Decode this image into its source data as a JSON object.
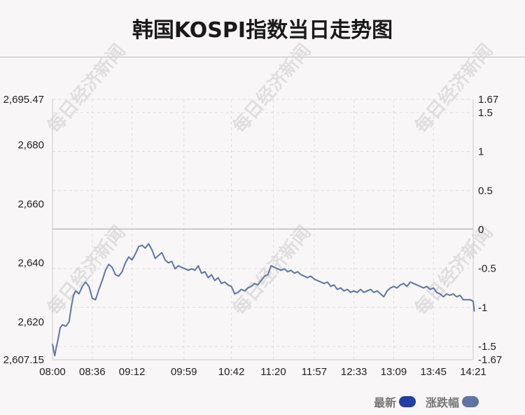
{
  "title": "韩国KOSPI指数当日走势图",
  "legend": [
    {
      "label": "最新",
      "color": "#1f3fa6"
    },
    {
      "label": "涨跌幅",
      "color": "#5f75a5"
    }
  ],
  "colors": {
    "line": "#5f75a5",
    "grid": "#e0dcdc",
    "zero_line": "#bdbdbd",
    "axis": "#cccccc"
  },
  "watermark": "每日经济新闻",
  "chart_data": {
    "type": "line",
    "title": "韩国KOSPI指数当日走势图",
    "x_ticks": [
      "08:00",
      "08:36",
      "09:12",
      "09:59",
      "10:42",
      "11:20",
      "11:57",
      "12:33",
      "13:09",
      "13:45",
      "14:21"
    ],
    "y_left": {
      "min": 2607.15,
      "max": 2695.47,
      "ticks": [
        "2,607.15",
        "2,620",
        "2,640",
        "2,660",
        "2,680",
        "2,695.47"
      ]
    },
    "y_right": {
      "min": -1.67,
      "max": 1.67,
      "ticks": [
        "-1.67",
        "-1.5",
        "-1",
        "-0.5",
        "0",
        "0.5",
        "1",
        "1.5",
        "1.67"
      ]
    },
    "reference": 2651.5,
    "series": [
      {
        "points": [
          [
            "08:00",
            2612.5
          ],
          [
            "08:02",
            2608.5
          ],
          [
            "08:03",
            2610.5
          ],
          [
            "08:05",
            2614.0
          ],
          [
            "08:07",
            2618.0
          ],
          [
            "08:09",
            2619.0
          ],
          [
            "08:12",
            2618.5
          ],
          [
            "08:15",
            2620.0
          ],
          [
            "08:17",
            2625.0
          ],
          [
            "08:19",
            2629.0
          ],
          [
            "08:21",
            2630.5
          ],
          [
            "08:24",
            2629.5
          ],
          [
            "08:27",
            2632.0
          ],
          [
            "08:30",
            2633.5
          ],
          [
            "08:33",
            2632.0
          ],
          [
            "08:36",
            2628.0
          ],
          [
            "08:39",
            2627.5
          ],
          [
            "08:42",
            2631.0
          ],
          [
            "08:45",
            2634.0
          ],
          [
            "08:48",
            2637.5
          ],
          [
            "08:51",
            2639.5
          ],
          [
            "08:54",
            2638.5
          ],
          [
            "08:57",
            2636.0
          ],
          [
            "09:00",
            2635.5
          ],
          [
            "09:03",
            2637.0
          ],
          [
            "09:06",
            2640.0
          ],
          [
            "09:09",
            2642.0
          ],
          [
            "09:12",
            2641.0
          ],
          [
            "09:15",
            2643.0
          ],
          [
            "09:18",
            2645.5
          ],
          [
            "09:21",
            2646.0
          ],
          [
            "09:24",
            2645.0
          ],
          [
            "09:27",
            2646.5
          ],
          [
            "09:30",
            2644.5
          ],
          [
            "09:33",
            2641.5
          ],
          [
            "09:36",
            2642.5
          ],
          [
            "09:39",
            2643.5
          ],
          [
            "09:42",
            2641.0
          ],
          [
            "09:45",
            2640.0
          ],
          [
            "09:48",
            2640.5
          ],
          [
            "09:51",
            2638.0
          ],
          [
            "09:54",
            2639.0
          ],
          [
            "09:57",
            2638.5
          ],
          [
            "10:00",
            2638.0
          ],
          [
            "10:03",
            2637.5
          ],
          [
            "10:06",
            2638.0
          ],
          [
            "10:09",
            2637.5
          ],
          [
            "10:12",
            2639.0
          ],
          [
            "10:15",
            2636.5
          ],
          [
            "10:18",
            2637.0
          ],
          [
            "10:21",
            2635.0
          ],
          [
            "10:24",
            2636.0
          ],
          [
            "10:27",
            2634.0
          ],
          [
            "10:30",
            2635.0
          ],
          [
            "10:33",
            2633.0
          ],
          [
            "10:36",
            2633.5
          ],
          [
            "10:39",
            2632.5
          ],
          [
            "10:42",
            2632.0
          ],
          [
            "10:45",
            2629.5
          ],
          [
            "10:48",
            2630.0
          ],
          [
            "10:51",
            2631.0
          ],
          [
            "10:54",
            2630.5
          ],
          [
            "10:57",
            2631.5
          ],
          [
            "11:00",
            2632.0
          ],
          [
            "11:03",
            2633.0
          ],
          [
            "11:06",
            2632.5
          ],
          [
            "11:09",
            2634.0
          ],
          [
            "11:12",
            2635.5
          ],
          [
            "11:15",
            2636.0
          ],
          [
            "11:18",
            2639.0
          ],
          [
            "11:21",
            2638.5
          ],
          [
            "11:24",
            2638.0
          ],
          [
            "11:27",
            2637.5
          ],
          [
            "11:30",
            2638.0
          ],
          [
            "11:33",
            2637.0
          ],
          [
            "11:36",
            2637.5
          ],
          [
            "11:39",
            2636.5
          ],
          [
            "11:42",
            2637.0
          ],
          [
            "11:45",
            2636.0
          ],
          [
            "11:48",
            2635.5
          ],
          [
            "11:51",
            2635.0
          ],
          [
            "11:54",
            2635.5
          ],
          [
            "11:57",
            2634.5
          ],
          [
            "12:00",
            2634.0
          ],
          [
            "12:03",
            2633.5
          ],
          [
            "12:06",
            2633.0
          ],
          [
            "12:09",
            2633.5
          ],
          [
            "12:12",
            2632.0
          ],
          [
            "12:15",
            2632.5
          ],
          [
            "12:18",
            2631.0
          ],
          [
            "12:21",
            2631.5
          ],
          [
            "12:24",
            2630.5
          ],
          [
            "12:27",
            2631.0
          ],
          [
            "12:30",
            2630.0
          ],
          [
            "12:33",
            2630.5
          ],
          [
            "12:36",
            2630.0
          ],
          [
            "12:39",
            2631.0
          ],
          [
            "12:42",
            2630.0
          ],
          [
            "12:45",
            2630.5
          ],
          [
            "12:48",
            2631.0
          ],
          [
            "12:51",
            2630.0
          ],
          [
            "12:54",
            2630.5
          ],
          [
            "12:57",
            2629.5
          ],
          [
            "13:00",
            2628.5
          ],
          [
            "13:03",
            2630.5
          ],
          [
            "13:06",
            2631.5
          ],
          [
            "13:09",
            2632.0
          ],
          [
            "13:12",
            2631.5
          ],
          [
            "13:15",
            2632.5
          ],
          [
            "13:18",
            2633.0
          ],
          [
            "13:21",
            2632.0
          ],
          [
            "13:24",
            2633.5
          ],
          [
            "13:27",
            2633.0
          ],
          [
            "13:30",
            2632.5
          ],
          [
            "13:33",
            2632.0
          ],
          [
            "13:36",
            2631.5
          ],
          [
            "13:39",
            2632.0
          ],
          [
            "13:42",
            2631.0
          ],
          [
            "13:45",
            2631.5
          ],
          [
            "13:48",
            2630.0
          ],
          [
            "13:51",
            2629.5
          ],
          [
            "13:54",
            2628.5
          ],
          [
            "13:57",
            2629.5
          ],
          [
            "14:00",
            2629.0
          ],
          [
            "14:03",
            2629.5
          ],
          [
            "14:06",
            2628.5
          ],
          [
            "14:09",
            2629.0
          ],
          [
            "14:12",
            2627.5
          ],
          [
            "14:15",
            2627.5
          ],
          [
            "14:18",
            2627.5
          ],
          [
            "14:21",
            2627.0
          ],
          [
            "14:22",
            2623.5
          ]
        ]
      }
    ]
  }
}
